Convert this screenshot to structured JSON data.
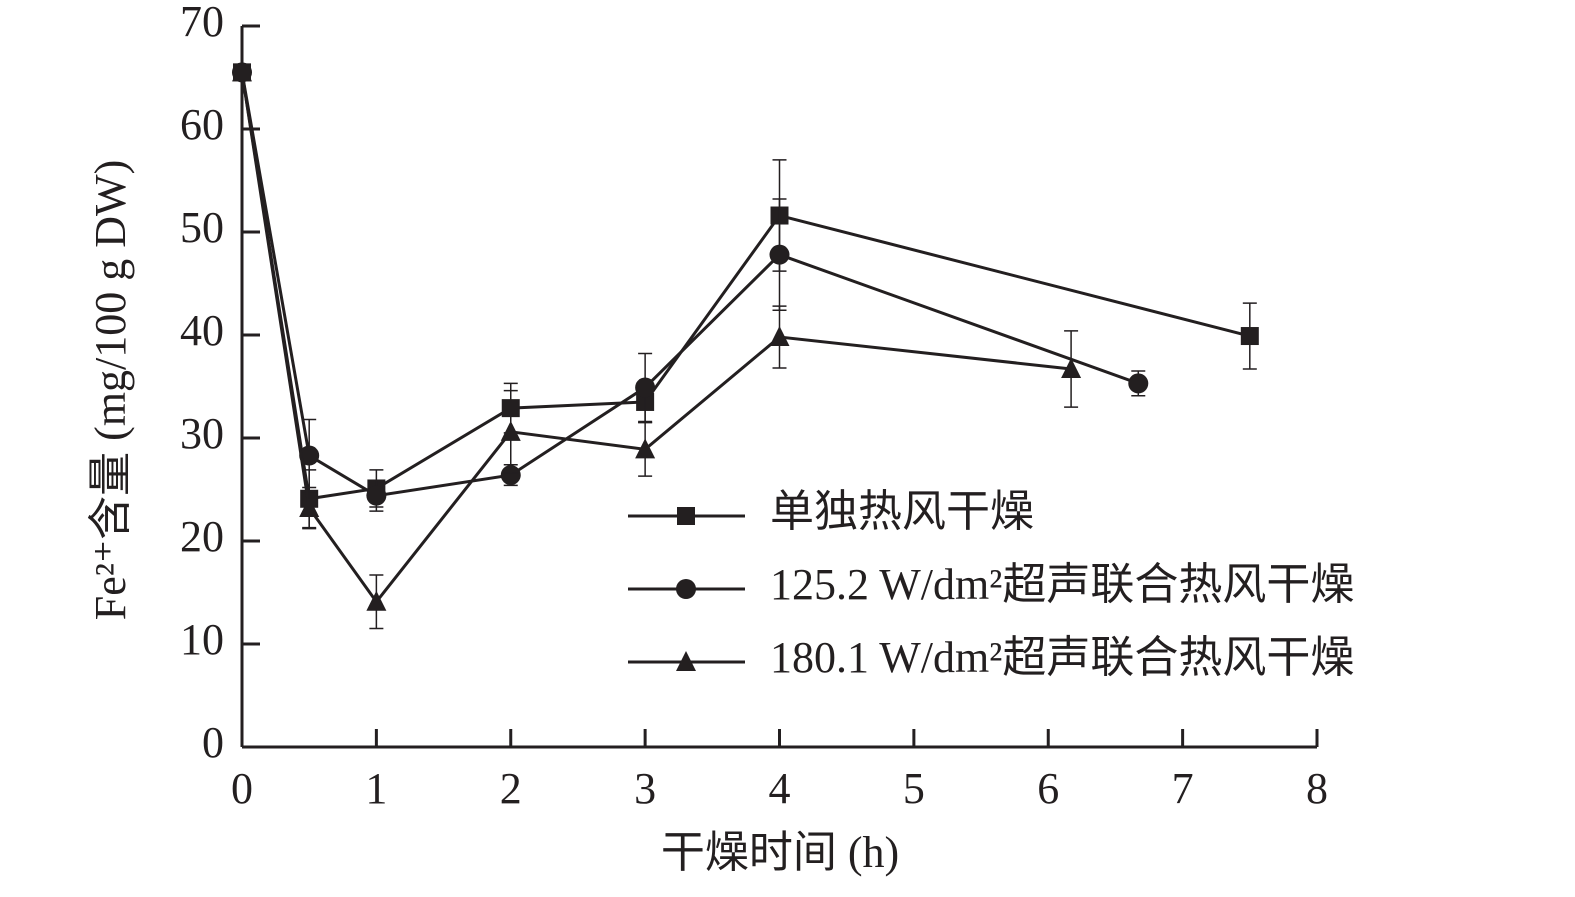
{
  "chart_data": {
    "type": "line",
    "xlabel": "干燥时间 (h)",
    "ylabel": "Fe²⁺含量 (mg/100 g DW)",
    "xlim": [
      0,
      8
    ],
    "xticks": [
      0,
      1,
      2,
      3,
      4,
      5,
      6,
      7,
      8
    ],
    "ylim": [
      0,
      70
    ],
    "yticks": [
      0,
      10,
      20,
      30,
      40,
      50,
      60,
      70
    ],
    "legend": "center right",
    "series": [
      {
        "name": "单独热风干燥",
        "color": "#231f20",
        "marker": "square",
        "x": [
          0,
          0.5,
          1,
          2,
          3,
          4,
          7.5
        ],
        "values": [
          65.5,
          24.1,
          25.1,
          32.9,
          33.5,
          51.6,
          39.9
        ],
        "errors": [
          null,
          2.8,
          1.8,
          2.4,
          2.0,
          5.4,
          3.2
        ]
      },
      {
        "name": "125.2 W/dm²超声联合热风干燥",
        "color": "#231f20",
        "marker": "circle",
        "x": [
          0,
          0.5,
          1,
          2,
          3,
          4,
          6.67
        ],
        "values": [
          65.5,
          28.3,
          24.4,
          26.4,
          34.9,
          47.8,
          35.3
        ],
        "errors": [
          null,
          3.5,
          1.5,
          1.0,
          3.3,
          5.4,
          1.2
        ]
      },
      {
        "name": "180.1 W/dm²超声联合热风干燥",
        "color": "#231f20",
        "marker": "triangle",
        "x": [
          0,
          0.5,
          1,
          2,
          3,
          4,
          6.17
        ],
        "values": [
          65.5,
          23.2,
          14.1,
          30.6,
          28.9,
          39.8,
          36.7
        ],
        "errors": [
          null,
          2.0,
          2.6,
          4.0,
          2.6,
          3.0,
          3.7
        ]
      }
    ]
  }
}
